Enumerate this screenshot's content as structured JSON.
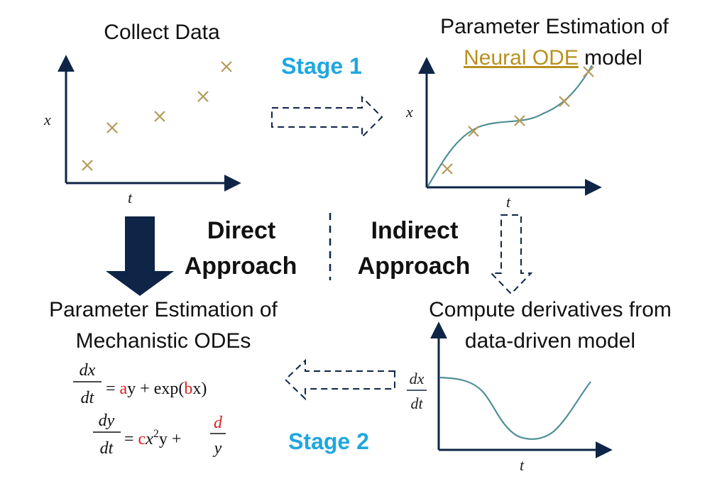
{
  "titles": {
    "collect": "Collect Data",
    "neural_line1": "Parameter Estimation of",
    "neural_link": "Neural ODE",
    "neural_rest": " model",
    "mech_line1": "Parameter Estimation of",
    "mech_line2": "Mechanistic ODEs",
    "deriv_line1": "Compute derivatives from",
    "deriv_line2": "data-driven model"
  },
  "stages": {
    "stage1": "Stage 1",
    "stage2": "Stage 2"
  },
  "approaches": {
    "direct_line1": "Direct",
    "direct_line2": "Approach",
    "indirect_line1": "Indirect",
    "indirect_line2": "Approach"
  },
  "axes": {
    "x": "x",
    "t": "t"
  },
  "equations": {
    "eq1_num": "dx",
    "eq1_den": "dt",
    "eq1_eq": "=",
    "eq1_a": "a",
    "eq1_y": "y + exp(",
    "eq1_b": "b",
    "eq1_x": "x)",
    "eq2_num": "dy",
    "eq2_den": "dt",
    "eq2_eq": "=",
    "eq2_c": "c",
    "eq2_x": "x",
    "eq2_sup": "2",
    "eq2_y": "y +",
    "eq2_d": "d",
    "eq2_dy": "y",
    "deriv_num": "dx",
    "deriv_den": "dt"
  },
  "colors": {
    "axis": "#0e2547",
    "marker": "#b39a5a",
    "curve": "#4f8f96",
    "stage": "#1fa7e0",
    "highlight": "#e02020",
    "link": "#b8901e",
    "arrow_solid": "#0e2547"
  },
  "icons": {
    "stage1_arrow": "dashed-right-arrow",
    "stage2_arrow": "dashed-left-arrow",
    "indirect_arrow": "dashed-down-arrow",
    "direct_arrow": "solid-down-arrow"
  }
}
